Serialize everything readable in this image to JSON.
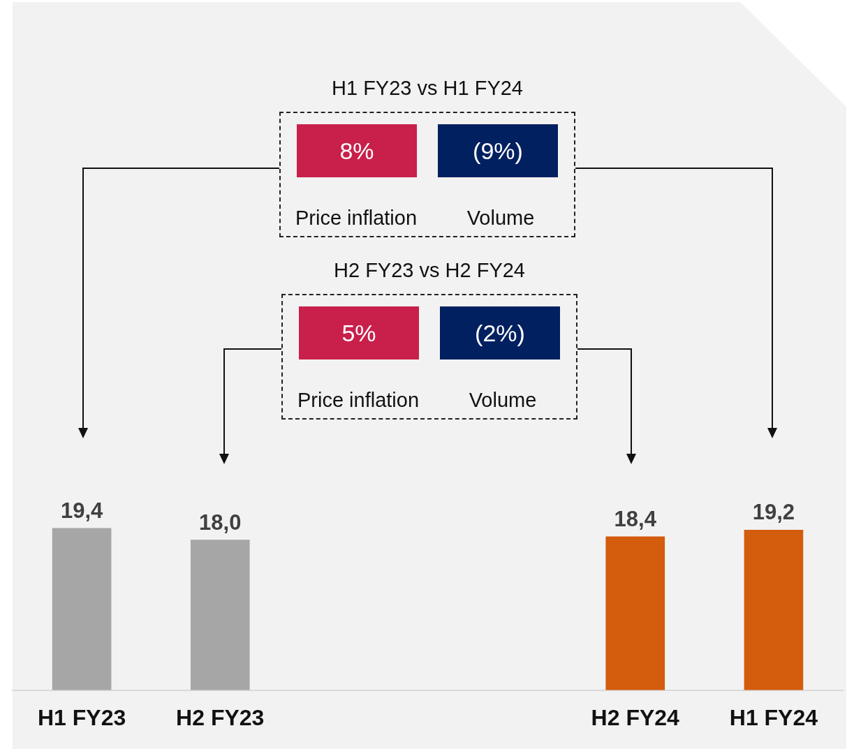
{
  "chart_data": {
    "type": "bar",
    "categories": [
      "H1 FY23",
      "H2 FY23",
      null,
      null,
      "H2 FY24",
      "H1 FY24"
    ],
    "values": [
      19.4,
      18.0,
      null,
      null,
      18.4,
      19.2
    ],
    "value_labels": [
      "19,4",
      "18,0",
      null,
      null,
      "18,4",
      "19,2"
    ],
    "colors": [
      "#a6a6a6",
      "#a6a6a6",
      "#a6a6a6",
      "#a6a6a6",
      "#d35c0d",
      "#d35c0d"
    ],
    "legend": false,
    "annotations": [
      "H1 FY23 vs H1 FY24",
      "8%",
      "(9%)",
      "Price inflation",
      "Volume",
      "H2 FY23 vs H2 FY24",
      "5%",
      "(2%)",
      "Price inflation",
      "Volume"
    ]
  }
}
